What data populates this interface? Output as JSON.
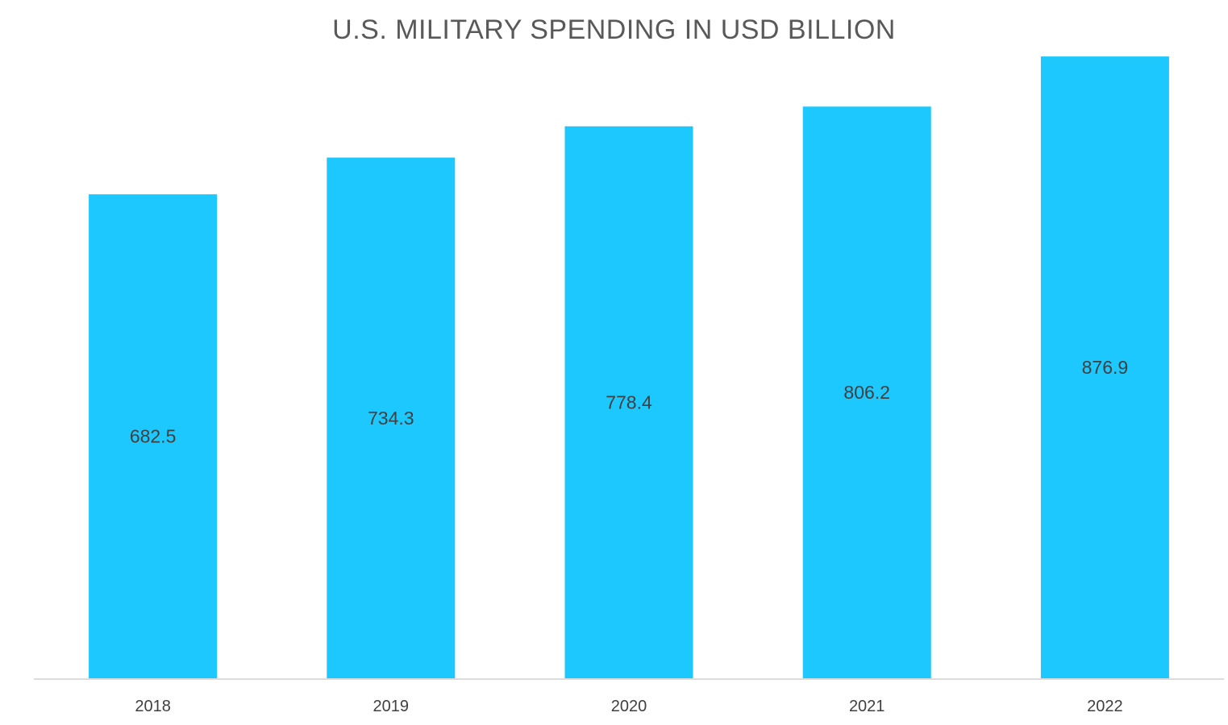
{
  "chart_data": {
    "type": "bar",
    "title": "U.S. MILITARY SPENDING IN USD BILLION",
    "categories": [
      "2018",
      "2019",
      "2020",
      "2021",
      "2022"
    ],
    "values": [
      682.5,
      734.3,
      778.4,
      806.2,
      876.9
    ],
    "value_labels": [
      "682.5",
      "734.3",
      "778.4",
      "806.2",
      "876.9"
    ],
    "xlabel": "",
    "ylabel": "",
    "ylim": [
      0,
      877
    ],
    "grid": false,
    "legend": "none",
    "colors": {
      "bar": "#1CC8FD",
      "axis": "#D0D0D0",
      "text": "#404040",
      "title": "#595959"
    }
  }
}
